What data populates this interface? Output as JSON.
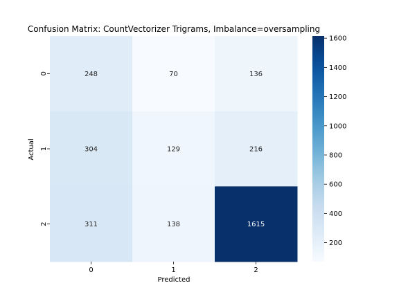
{
  "chart_data": {
    "type": "heatmap",
    "title": "Confusion Matrix: CountVectorizer Trigrams, Imbalance=oversampling",
    "xlabel": "Predicted",
    "ylabel": "Actual",
    "x_categories": [
      "0",
      "1",
      "2"
    ],
    "y_categories": [
      "0",
      "1",
      "2"
    ],
    "values": [
      [
        248,
        70,
        136
      ],
      [
        304,
        129,
        216
      ],
      [
        311,
        138,
        1615
      ]
    ],
    "colormap": "Blues",
    "color_range": [
      70,
      1615
    ],
    "colorbar_ticks": [
      200,
      400,
      600,
      800,
      1000,
      1200,
      1400,
      1600
    ]
  }
}
